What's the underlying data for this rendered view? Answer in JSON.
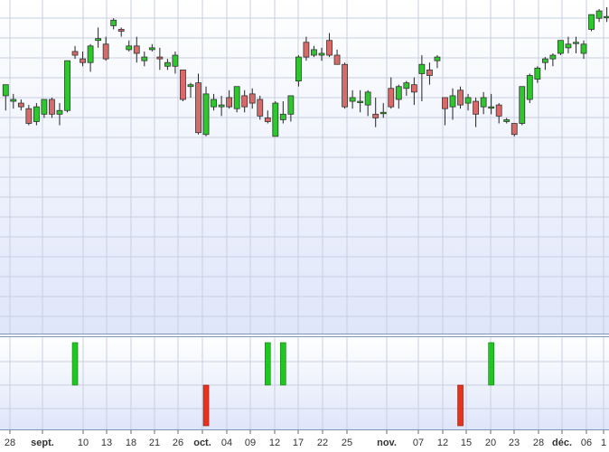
{
  "colors": {
    "up": "#2ec82e",
    "down": "#d96a6a",
    "bull_signal": "#1ec81e",
    "bear_signal": "#e8321e",
    "grid": "#c8cfe0",
    "panel_top": "#ffffff",
    "panel_bottom": "#dfe6fa",
    "border": "#7f93b8"
  },
  "chart_data": [
    {
      "type": "candlestick",
      "title": "",
      "xlabel": "",
      "ylabel": "",
      "ylim": [
        0,
        100
      ],
      "grid": true,
      "y_axis_labels_visible": false,
      "x_ticks": [
        {
          "label": "28",
          "major": false
        },
        {
          "label": "sept.",
          "major": true
        },
        {
          "label": "10",
          "major": false
        },
        {
          "label": "13",
          "major": false
        },
        {
          "label": "18",
          "major": false
        },
        {
          "label": "21",
          "major": false
        },
        {
          "label": "26",
          "major": false
        },
        {
          "label": "oct.",
          "major": true
        },
        {
          "label": "04",
          "major": false
        },
        {
          "label": "09",
          "major": false
        },
        {
          "label": "12",
          "major": false
        },
        {
          "label": "17",
          "major": false
        },
        {
          "label": "22",
          "major": false
        },
        {
          "label": "25",
          "major": false
        },
        {
          "label": "nov.",
          "major": true
        },
        {
          "label": "07",
          "major": false
        },
        {
          "label": "12",
          "major": false
        },
        {
          "label": "15",
          "major": false
        },
        {
          "label": "20",
          "major": false
        },
        {
          "label": "23",
          "major": false
        },
        {
          "label": "28",
          "major": false
        },
        {
          "label": "déc.",
          "major": true
        },
        {
          "label": "06",
          "major": false
        },
        {
          "label": "1",
          "major": false
        }
      ],
      "candles": [
        {
          "o": 52,
          "h": 58,
          "l": 44,
          "c": 58
        },
        {
          "o": 49,
          "h": 53,
          "l": 45,
          "c": 50
        },
        {
          "o": 48,
          "h": 50,
          "l": 44,
          "c": 46
        },
        {
          "o": 45,
          "h": 47,
          "l": 36,
          "c": 37
        },
        {
          "o": 38,
          "h": 48,
          "l": 36,
          "c": 46
        },
        {
          "o": 42,
          "h": 50,
          "l": 40,
          "c": 50
        },
        {
          "o": 50,
          "h": 51,
          "l": 40,
          "c": 42
        },
        {
          "o": 42,
          "h": 48,
          "l": 36,
          "c": 44
        },
        {
          "o": 44,
          "h": 71,
          "l": 43,
          "c": 71
        },
        {
          "o": 76,
          "h": 79,
          "l": 72,
          "c": 74
        },
        {
          "o": 72,
          "h": 76,
          "l": 68,
          "c": 70
        },
        {
          "o": 70,
          "h": 80,
          "l": 65,
          "c": 79
        },
        {
          "o": 82,
          "h": 89,
          "l": 78,
          "c": 83
        },
        {
          "o": 80,
          "h": 84,
          "l": 71,
          "c": 72
        },
        {
          "o": 90,
          "h": 94,
          "l": 88,
          "c": 93
        },
        {
          "o": 88,
          "h": 89,
          "l": 84,
          "c": 87
        },
        {
          "o": 77,
          "h": 82,
          "l": 76,
          "c": 79
        },
        {
          "o": 79,
          "h": 84,
          "l": 70,
          "c": 75
        },
        {
          "o": 71,
          "h": 76,
          "l": 68,
          "c": 73
        },
        {
          "o": 77,
          "h": 80,
          "l": 76,
          "c": 78
        },
        {
          "o": 73,
          "h": 78,
          "l": 66,
          "c": 72
        },
        {
          "o": 68,
          "h": 72,
          "l": 66,
          "c": 70
        },
        {
          "o": 68,
          "h": 76,
          "l": 64,
          "c": 74
        },
        {
          "o": 66,
          "h": 66,
          "l": 49,
          "c": 50
        },
        {
          "o": 57,
          "h": 59,
          "l": 51,
          "c": 58
        },
        {
          "o": 59,
          "h": 64,
          "l": 31,
          "c": 32
        },
        {
          "o": 31,
          "h": 57,
          "l": 30,
          "c": 53
        },
        {
          "o": 46,
          "h": 53,
          "l": 44,
          "c": 50
        },
        {
          "o": 46,
          "h": 52,
          "l": 41,
          "c": 47
        },
        {
          "o": 51,
          "h": 55,
          "l": 45,
          "c": 46
        },
        {
          "o": 45,
          "h": 57,
          "l": 43,
          "c": 57
        },
        {
          "o": 52,
          "h": 55,
          "l": 43,
          "c": 46
        },
        {
          "o": 53,
          "h": 56,
          "l": 45,
          "c": 48
        },
        {
          "o": 50,
          "h": 52,
          "l": 39,
          "c": 41
        },
        {
          "o": 40,
          "h": 44,
          "l": 37,
          "c": 38
        },
        {
          "o": 30,
          "h": 49,
          "l": 30,
          "c": 48
        },
        {
          "o": 39,
          "h": 49,
          "l": 37,
          "c": 42
        },
        {
          "o": 42,
          "h": 52,
          "l": 38,
          "c": 52
        },
        {
          "o": 60,
          "h": 74,
          "l": 57,
          "c": 73
        },
        {
          "o": 81,
          "h": 84,
          "l": 71,
          "c": 73
        },
        {
          "o": 74,
          "h": 79,
          "l": 73,
          "c": 77
        },
        {
          "o": 74,
          "h": 78,
          "l": 71,
          "c": 75
        },
        {
          "o": 82,
          "h": 86,
          "l": 73,
          "c": 74
        },
        {
          "o": 74,
          "h": 77,
          "l": 69,
          "c": 69
        },
        {
          "o": 69,
          "h": 70,
          "l": 45,
          "c": 46
        },
        {
          "o": 49,
          "h": 55,
          "l": 45,
          "c": 51
        },
        {
          "o": 49,
          "h": 55,
          "l": 43,
          "c": 49
        },
        {
          "o": 47,
          "h": 55,
          "l": 41,
          "c": 54
        },
        {
          "o": 42,
          "h": 51,
          "l": 35,
          "c": 40
        },
        {
          "o": 43,
          "h": 48,
          "l": 40,
          "c": 43
        },
        {
          "o": 56,
          "h": 62,
          "l": 45,
          "c": 46
        },
        {
          "o": 50,
          "h": 58,
          "l": 45,
          "c": 57
        },
        {
          "o": 56,
          "h": 60,
          "l": 52,
          "c": 59
        },
        {
          "o": 58,
          "h": 62,
          "l": 47,
          "c": 54
        },
        {
          "o": 64,
          "h": 74,
          "l": 49,
          "c": 69
        },
        {
          "o": 66,
          "h": 70,
          "l": 58,
          "c": 63
        },
        {
          "o": 71,
          "h": 74,
          "l": 67,
          "c": 73
        },
        {
          "o": 51,
          "h": 51,
          "l": 36,
          "c": 45
        },
        {
          "o": 46,
          "h": 56,
          "l": 39,
          "c": 52
        },
        {
          "o": 55,
          "h": 57,
          "l": 45,
          "c": 47
        },
        {
          "o": 48,
          "h": 53,
          "l": 44,
          "c": 51
        },
        {
          "o": 49,
          "h": 51,
          "l": 35,
          "c": 42
        },
        {
          "o": 46,
          "h": 54,
          "l": 42,
          "c": 51
        },
        {
          "o": 46,
          "h": 53,
          "l": 42,
          "c": 46
        },
        {
          "o": 47,
          "h": 48,
          "l": 37,
          "c": 41
        },
        {
          "o": 38,
          "h": 40,
          "l": 37,
          "c": 39
        },
        {
          "o": 37,
          "h": 37,
          "l": 30,
          "c": 31
        },
        {
          "o": 37,
          "h": 57,
          "l": 36,
          "c": 57
        },
        {
          "o": 50,
          "h": 64,
          "l": 48,
          "c": 63
        },
        {
          "o": 61,
          "h": 68,
          "l": 59,
          "c": 67
        },
        {
          "o": 70,
          "h": 73,
          "l": 66,
          "c": 72
        },
        {
          "o": 72,
          "h": 75,
          "l": 68,
          "c": 74
        },
        {
          "o": 75,
          "h": 82,
          "l": 74,
          "c": 82
        },
        {
          "o": 78,
          "h": 84,
          "l": 75,
          "c": 80
        },
        {
          "o": 81,
          "h": 84,
          "l": 75,
          "c": 81
        },
        {
          "o": 75,
          "h": 82,
          "l": 72,
          "c": 80
        },
        {
          "o": 88,
          "h": 96,
          "l": 87,
          "c": 96
        },
        {
          "o": 94,
          "h": 99,
          "l": 92,
          "c": 98
        },
        {
          "o": 95,
          "h": 100,
          "l": 92,
          "c": 95
        },
        {
          "o": 94,
          "h": 97,
          "l": 93,
          "c": 97
        },
        {
          "o": 99,
          "h": 100,
          "l": 98,
          "c": 98
        },
        {
          "o": 99,
          "h": 100,
          "l": 98,
          "c": 99
        },
        {
          "o": 95,
          "h": 100,
          "l": 94,
          "c": 99
        },
        {
          "o": 95,
          "h": 100,
          "l": 93,
          "c": 99
        }
      ]
    },
    {
      "type": "bar",
      "title": "",
      "indicator_panel": true,
      "description_of_series": "bullish (green, upward) and bearish (red, downward) signal bars",
      "signals": [
        {
          "candle_index": 9,
          "direction": "bull"
        },
        {
          "candle_index": 26,
          "direction": "bear"
        },
        {
          "candle_index": 34,
          "direction": "bull"
        },
        {
          "candle_index": 36,
          "direction": "bull"
        },
        {
          "candle_index": 59,
          "direction": "bear"
        },
        {
          "candle_index": 63,
          "direction": "bull"
        }
      ]
    }
  ]
}
